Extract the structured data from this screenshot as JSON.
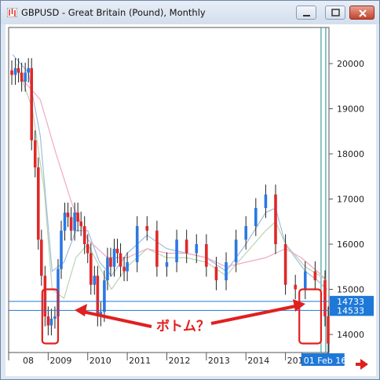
{
  "window": {
    "title": "GBPUSD - Great Britain (Pound), Monthly",
    "buttons": [
      "minimize",
      "maximize",
      "close"
    ]
  },
  "chart_data": {
    "type": "candlestick",
    "title": "GBPUSD - Great Britain (Pound), Monthly",
    "y_ticks": [
      14000,
      15000,
      16000,
      17000,
      18000,
      19000,
      20000
    ],
    "ylim": [
      13600,
      20800
    ],
    "x_ticks": [
      "08",
      "2009",
      "2010",
      "2011",
      "2012",
      "2013",
      "2014",
      "2015",
      "01 Feb 16"
    ],
    "xlim": [
      2008.0,
      2016.1
    ],
    "price_tags": [
      {
        "label": "14733",
        "value": 14733
      },
      {
        "label": "14533",
        "value": 14533
      }
    ],
    "annotation": {
      "text": "ボトム？",
      "color": "#e02020"
    },
    "highlight_boxes": [
      {
        "from": 2008.85,
        "to": 2009.25,
        "low": 13800,
        "high": 15000
      },
      {
        "from": 2015.35,
        "to": 2015.9,
        "low": 13800,
        "high": 15000
      }
    ],
    "series": [
      {
        "name": "",
        "kind": "close",
        "color": "#2a78e4",
        "x": [
          2008.0,
          2008.08,
          2008.17,
          2008.25,
          2008.33,
          2008.42,
          2008.5,
          2008.58,
          2008.67,
          2008.75,
          2008.83,
          2008.92,
          2009.0,
          2009.08,
          2009.17,
          2009.25,
          2009.33,
          2009.42,
          2009.5,
          2009.58,
          2009.67,
          2009.75,
          2009.83,
          2009.92,
          2010.0,
          2010.08,
          2010.17,
          2010.25,
          2010.33,
          2010.42,
          2010.5,
          2010.58,
          2010.67,
          2010.75,
          2010.83,
          2010.92,
          2011.0,
          2011.25,
          2011.5,
          2011.75,
          2012.0,
          2012.25,
          2012.5,
          2012.75,
          2013.0,
          2013.25,
          2013.5,
          2013.75,
          2014.0,
          2014.25,
          2014.5,
          2014.75,
          2015.0,
          2015.25,
          2015.5,
          2015.75,
          2016.0,
          2016.08
        ],
        "y": [
          19850,
          19750,
          19900,
          19800,
          19600,
          19800,
          19900,
          18300,
          17700,
          16100,
          15300,
          14400,
          14200,
          14350,
          14400,
          15450,
          16300,
          16700,
          16600,
          16300,
          16700,
          16500,
          16400,
          16000,
          15800,
          15100,
          15300,
          14400,
          14500,
          15200,
          15700,
          15500,
          15900,
          15800,
          15500,
          15400,
          15600,
          16400,
          16300,
          15500,
          15600,
          16100,
          15800,
          16000,
          15500,
          15200,
          15600,
          16100,
          16400,
          16800,
          17100,
          16000,
          15100,
          15000,
          15400,
          15200,
          14400,
          13800
        ]
      },
      {
        "name": "",
        "kind": "ma-short",
        "color": "#9fbde0",
        "x": [
          2008.1,
          2008.5,
          2008.8,
          2009.1,
          2009.4,
          2009.7,
          2010.0,
          2010.3,
          2010.6,
          2011.0,
          2011.5,
          2012.0,
          2012.5,
          2013.0,
          2013.5,
          2014.0,
          2014.5,
          2014.75,
          2015.0,
          2015.5,
          2015.8,
          2016.05
        ],
        "y": [
          20200,
          19800,
          18400,
          15400,
          15600,
          16300,
          16300,
          15600,
          15300,
          15800,
          16200,
          15900,
          15800,
          15700,
          15400,
          16000,
          16700,
          16800,
          16000,
          15400,
          15200,
          15000
        ]
      },
      {
        "name": "",
        "kind": "ma-mid",
        "color": "#b9d4b0",
        "x": [
          2008.2,
          2008.6,
          2008.9,
          2009.1,
          2009.4,
          2009.7,
          2010.0,
          2010.3,
          2010.6,
          2011.0,
          2011.5,
          2012.0,
          2012.5,
          2013.0,
          2013.5,
          2014.0,
          2014.5,
          2014.75,
          2015.0,
          2015.5,
          2016.05
        ],
        "y": [
          20000,
          19000,
          17200,
          15000,
          14800,
          15700,
          16000,
          15500,
          15000,
          15500,
          15900,
          15700,
          15700,
          15600,
          15300,
          15800,
          16300,
          16500,
          16000,
          15500,
          15200
        ]
      },
      {
        "name": "",
        "kind": "ma-long",
        "color": "#f0a8c8",
        "x": [
          2008.3,
          2008.8,
          2009.2,
          2009.6,
          2010.0,
          2010.5,
          2011.0,
          2011.5,
          2012.0,
          2012.5,
          2013.0,
          2013.5,
          2014.0,
          2014.5,
          2015.0,
          2015.4,
          2015.8,
          2016.05
        ],
        "y": [
          19700,
          19200,
          18000,
          16900,
          16100,
          15700,
          15700,
          15900,
          15800,
          15800,
          15700,
          15500,
          15600,
          15700,
          15900,
          15700,
          15400,
          15200
        ]
      }
    ]
  }
}
